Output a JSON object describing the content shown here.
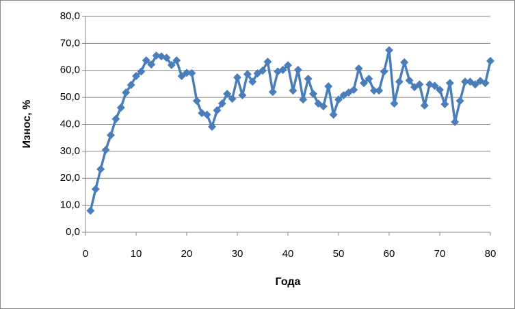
{
  "chart_data": {
    "type": "line",
    "y_label": "Износ, %",
    "x_label": "Года",
    "x": [
      1,
      2,
      3,
      4,
      5,
      6,
      7,
      8,
      9,
      10,
      11,
      12,
      13,
      14,
      15,
      16,
      17,
      18,
      19,
      20,
      21,
      22,
      23,
      24,
      25,
      26,
      27,
      28,
      29,
      30,
      31,
      32,
      33,
      34,
      35,
      36,
      37,
      38,
      39,
      40,
      41,
      42,
      43,
      44,
      45,
      46,
      47,
      48,
      49,
      50,
      51,
      52,
      53,
      54,
      55,
      56,
      57,
      58,
      59,
      60,
      61,
      62,
      63,
      64,
      65,
      66,
      67,
      68,
      69,
      70,
      71,
      72,
      73,
      74,
      75,
      76,
      77,
      78,
      79,
      80
    ],
    "series": [
      {
        "color": "#4a7ebb",
        "values": [
          8,
          16,
          23.4,
          30.5,
          36,
          42,
          46.2,
          51.8,
          54.6,
          57.9,
          59.6,
          63.7,
          62.2,
          65.5,
          65.2,
          64.7,
          62,
          63.7,
          57.9,
          59.1,
          59,
          48.7,
          44.2,
          43.6,
          39.1,
          45.2,
          47.7,
          51.3,
          49.5,
          57.4,
          50.8,
          58.6,
          55.8,
          58.9,
          59.9,
          63.2,
          52,
          59.6,
          60.2,
          61.9,
          52.5,
          60.2,
          49.2,
          56.9,
          51.3,
          47.7,
          46.7,
          54.1,
          43.6,
          49.2,
          50.8,
          51.8,
          52.8,
          60.7,
          55.3,
          56.9,
          52.5,
          52.5,
          59.6,
          67.5,
          47.7,
          55.8,
          63,
          56.3,
          53.8,
          54.8,
          47,
          54.8,
          54.3,
          52.8,
          47.5,
          55.3,
          40.9,
          48.7,
          55.8,
          55.8,
          54.8,
          56.1,
          55.3,
          63.5
        ]
      }
    ],
    "xlim": [
      0,
      80
    ],
    "xticks": [
      0,
      10,
      20,
      30,
      40,
      50,
      60,
      70,
      80
    ],
    "ylim": [
      0,
      80
    ],
    "yticks": [
      {
        "value": 0,
        "label": "0,0"
      },
      {
        "value": 10,
        "label": "10,0"
      },
      {
        "value": 20,
        "label": "20,0"
      },
      {
        "value": 30,
        "label": "30,0"
      },
      {
        "value": 40,
        "label": "40,0"
      },
      {
        "value": 50,
        "label": "50,0"
      },
      {
        "value": 60,
        "label": "60,0"
      },
      {
        "value": 70,
        "label": "70,0"
      },
      {
        "value": 80,
        "label": "80,0"
      }
    ],
    "grid": true
  }
}
